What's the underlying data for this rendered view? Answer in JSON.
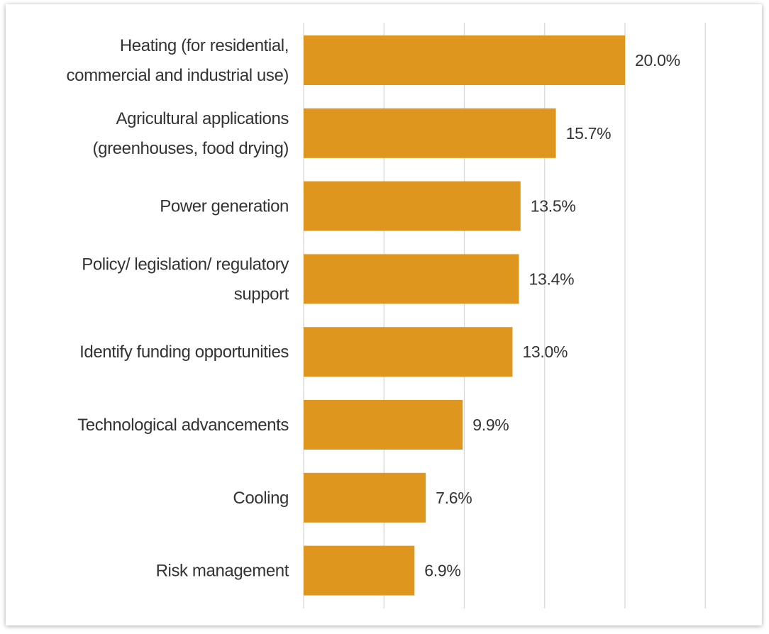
{
  "chart_data": {
    "type": "bar",
    "orientation": "horizontal",
    "title": "",
    "xlabel": "",
    "ylabel": "",
    "xlim": [
      0,
      25
    ],
    "grid": true,
    "bar_color": "#DE961E",
    "categories": [
      [
        "Heating (for residential,",
        "commercial and industrial use)"
      ],
      [
        "Agricultural applications",
        "(greenhouses, food drying)"
      ],
      [
        "Power generation"
      ],
      [
        "Policy/ legislation/ regulatory",
        "support"
      ],
      [
        "Identify funding opportunities"
      ],
      [
        "Technological advancements"
      ],
      [
        "Cooling"
      ],
      [
        "Risk management"
      ]
    ],
    "values": [
      20.0,
      15.7,
      13.5,
      13.4,
      13.0,
      9.9,
      7.6,
      6.9
    ],
    "data_labels": [
      "20.0%",
      "15.7%",
      "13.5%",
      "13.4%",
      "13.0%",
      "9.9%",
      "7.6%",
      "6.9%"
    ]
  }
}
